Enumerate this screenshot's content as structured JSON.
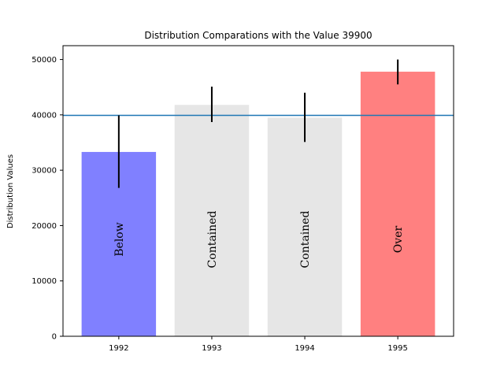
{
  "chart_data": {
    "type": "bar",
    "title": "Distribution Comparations with the Value 39900",
    "xlabel": "",
    "ylabel": "Distribution Values",
    "categories": [
      "1992",
      "1993",
      "1994",
      "1995"
    ],
    "values": [
      33300,
      41800,
      39500,
      47800
    ],
    "error_low": [
      26800,
      38700,
      35100,
      45500
    ],
    "error_high": [
      39900,
      45100,
      44000,
      50000
    ],
    "bar_labels": [
      "Below",
      "Contained",
      "Contained",
      "Over"
    ],
    "bar_colors": [
      "#8080ff",
      "#e6e6e6",
      "#e6e6e6",
      "#ff8080"
    ],
    "reference_value": 39900,
    "reference_color": "#1f77b4",
    "ylim": [
      0,
      52500
    ],
    "yticks": [
      0,
      10000,
      20000,
      30000,
      40000,
      50000
    ],
    "ytick_labels": [
      "0",
      "10000",
      "20000",
      "30000",
      "40000",
      "50000"
    ]
  }
}
